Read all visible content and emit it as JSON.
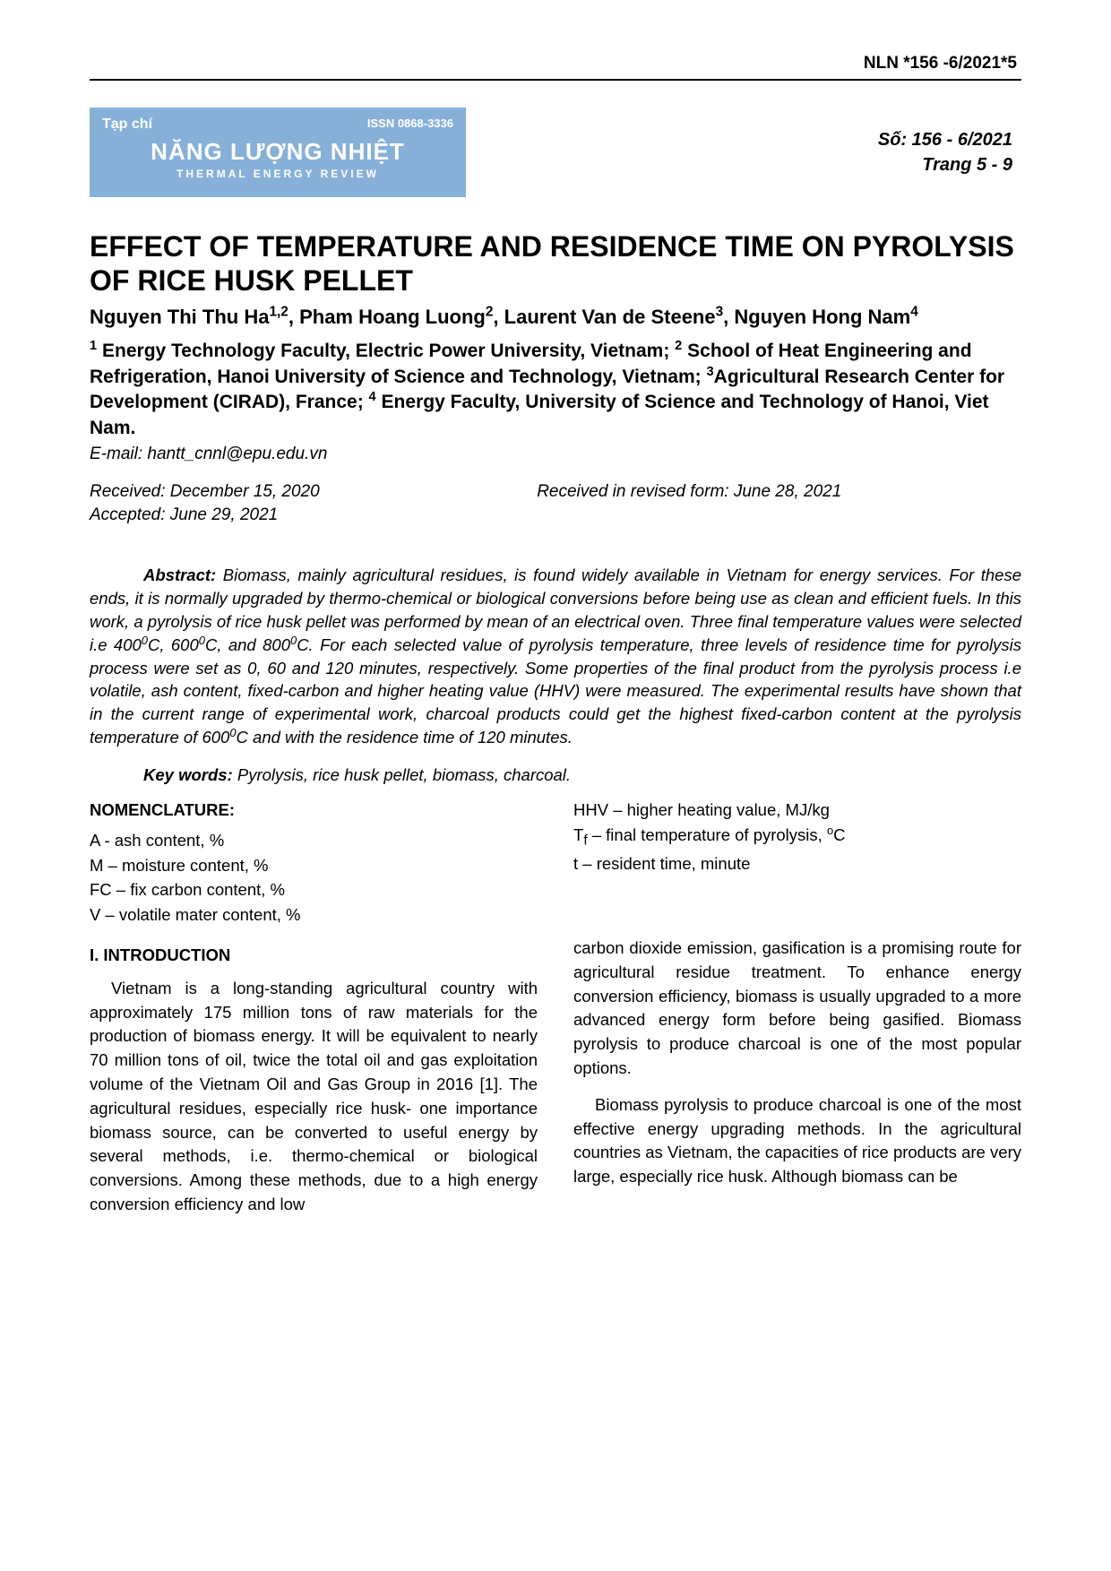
{
  "header": {
    "code": "NLN *156 -6/2021*5"
  },
  "journal": {
    "tapchi": "Tạp chí",
    "issn": "ISSN 0868-3336",
    "mainTitle": "NĂNG LƯỢNG NHIỆT",
    "subTitle": "THERMAL ENERGY REVIEW",
    "issueNo": "Số: 156 - 6/2021",
    "pages": "Trang 5 - 9",
    "bannerBg": "#87b0d8",
    "bannerText": "#ffffff"
  },
  "paper": {
    "title": "EFFECT OF TEMPERATURE AND RESIDENCE TIME ON PYROLYSIS OF RICE HUSK PELLET",
    "authorsHtml": "Nguyen Thi Thu Ha<sup>1,2</sup>, Pham Hoang Luong<sup>2</sup>, Laurent Van de Steene<sup>3</sup>, Nguyen Hong Nam<sup>4</sup>",
    "affiliationsHtml": "<sup>1</sup> Energy Technology Faculty, Electric Power University, Vietnam; <sup>2</sup> School of Heat Engineering and Refrigeration, Hanoi University of Science and Technology, Vietnam; <sup>3</sup>Agricultural Research Center for Development (CIRAD), France; <sup>4</sup> Energy Faculty, University of Science and Technology of Hanoi, Viet Nam.",
    "email": "E-mail: hantt_cnnl@epu.edu.vn",
    "received": "Received: December 15, 2020",
    "revised": "Received in revised form: June 28, 2021",
    "accepted": "Accepted: June 29, 2021"
  },
  "abstract": {
    "label": "Abstract:",
    "textHtml": " Biomass, mainly agricultural residues, is found widely available in Vietnam for energy services. For these ends, it is normally upgraded by thermo-chemical or biological conversions before being use as clean and efficient fuels. In this work, a pyrolysis of rice husk pellet was performed by mean of an electrical oven. Three final temperature values were selected i.e 400<sup>0</sup>C, 600<sup>0</sup>C, and 800<sup>0</sup>C. For each selected value of pyrolysis temperature, three levels of residence time for pyrolysis process were set as 0, 60 and 120 minutes, respectively. Some properties of the final product from the pyrolysis process i.e volatile, ash content, fixed-carbon and higher heating value (HHV) were measured. The experimental results have shown that in the current range of experimental work, charcoal products could get  the highest fixed-carbon content at the pyrolysis temperature of 600<sup>0</sup>C and with the residence time of 120 minutes."
  },
  "keywords": {
    "label": "Key words:",
    "text": " Pyrolysis, rice husk pellet, biomass, charcoal."
  },
  "nomenclature": {
    "title": "NOMENCLATURE:",
    "left": [
      "A - ash content, %",
      "M – moisture content, %",
      "FC – fix carbon content, %",
      "V – volatile mater content, %"
    ],
    "rightHtml": [
      "HHV – higher heating value, MJ/kg",
      "T<sub>f</sub> – final temperature of pyrolysis, <sup>o</sup>C",
      "t – resident time, minute"
    ]
  },
  "intro": {
    "title": "I. INTRODUCTION",
    "leftPara": "Vietnam is a long-standing agricultural country with approximately 175 million tons of raw materials for the production of biomass energy. It will be equivalent to nearly 70 million tons of oil, twice the total oil and gas exploitation volume of the Vietnam Oil and Gas Group in 2016 [1]. The agricultural residues, especially rice husk- one importance biomass source, can be converted to useful energy by several methods, i.e. thermo-chemical or biological conversions. Among these methods, due to a high energy conversion efficiency and low",
    "rightPara1": "carbon dioxide emission, gasification is a promising route for agricultural residue treatment. To enhance energy conversion efficiency, biomass is usually upgraded to a more advanced energy form before being gasified. Biomass pyrolysis to produce charcoal is one of the most popular options.",
    "rightPara2": "Biomass pyrolysis to produce charcoal is one of the most effective energy upgrading methods. In the agricultural countries as Vietnam, the capacities of rice products are very large, especially rice husk. Although biomass can be"
  },
  "typography": {
    "bodyFontSize": 18.5,
    "titleFontSize": 32,
    "authorFontSize": 22,
    "textColor": "#000000",
    "background": "#ffffff"
  }
}
